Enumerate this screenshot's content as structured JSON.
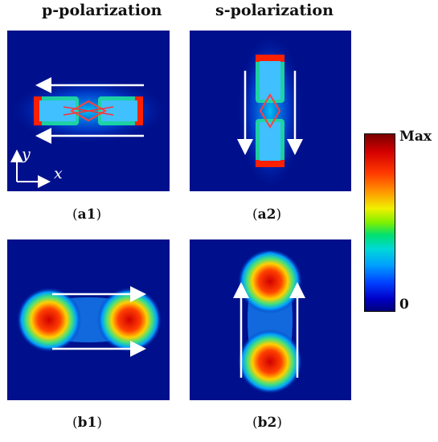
{
  "headings": {
    "left": "p-polarization",
    "right": "s-polarization"
  },
  "panels": {
    "a1": {
      "pre": "(",
      "bold": "a1",
      "post": ")"
    },
    "a2": {
      "pre": "(",
      "bold": "a2",
      "post": ")"
    },
    "b1": {
      "pre": "(",
      "bold": "b1",
      "post": ")"
    },
    "b2": {
      "pre": "(",
      "bold": "b2",
      "post": ")"
    }
  },
  "axes": {
    "y": "y",
    "x": "x"
  },
  "colorbar": {
    "max_label": "Max",
    "min_label": "0"
  },
  "colors": {
    "background": "#00108c",
    "arrow": "#ffffff"
  }
}
